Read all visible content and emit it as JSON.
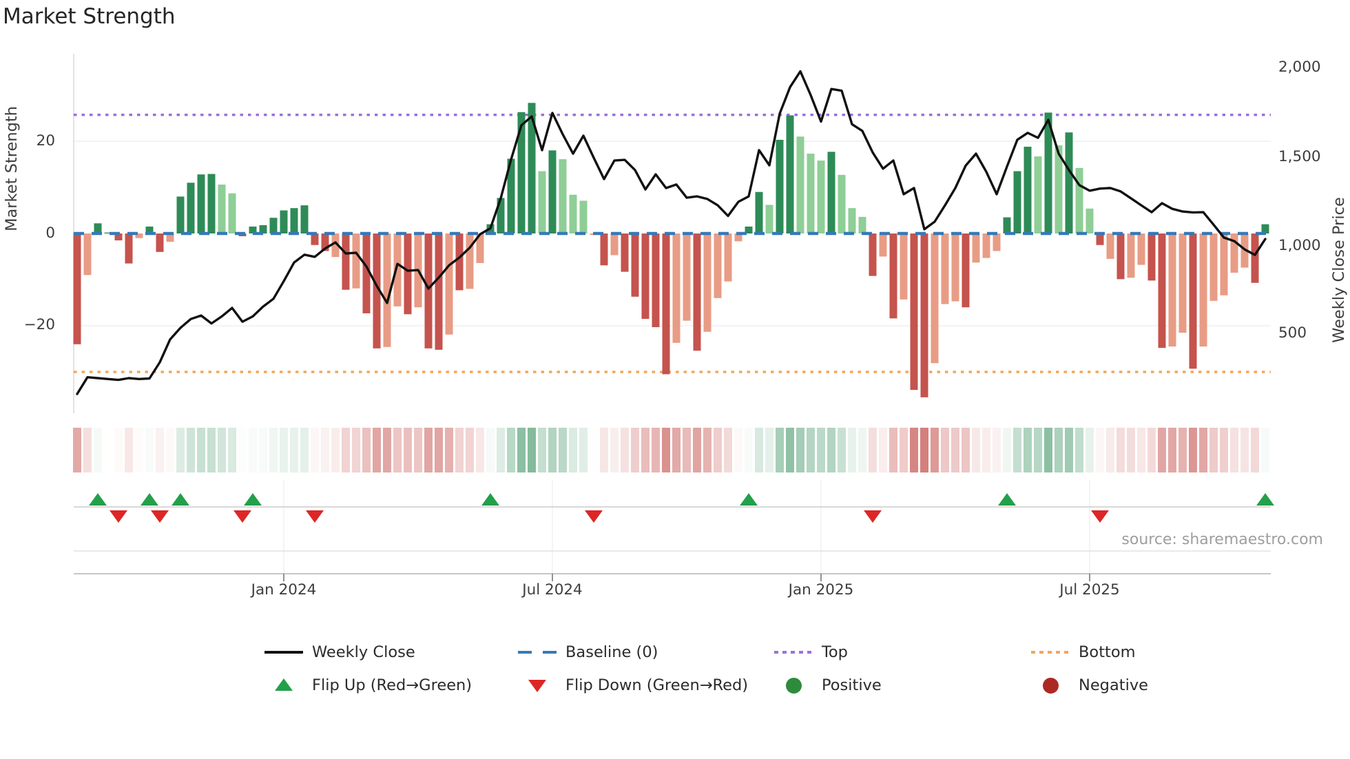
{
  "title": "Market Strength",
  "source": "source: sharemaestro.com",
  "axes": {
    "left_label": "Market Strength",
    "right_label": "Weekly Close Price",
    "left_ticks": [
      {
        "label": "20",
        "value": 20
      },
      {
        "label": "0",
        "value": 0
      },
      {
        "label": "−20",
        "value": -20
      }
    ],
    "right_ticks": [
      {
        "label": "2,000",
        "value": 2000
      },
      {
        "label": "1,500",
        "value": 1500
      },
      {
        "label": "1,000",
        "value": 1000
      },
      {
        "label": "500",
        "value": 500
      }
    ],
    "x_ticks": [
      {
        "label": "Jan 2024",
        "week": 20
      },
      {
        "label": "Jul 2024",
        "week": 46
      },
      {
        "label": "Jan 2025",
        "week": 72
      },
      {
        "label": "Jul 2025",
        "week": 98
      }
    ]
  },
  "legend": {
    "items": [
      {
        "label": "Weekly Close",
        "swatch": "line-black"
      },
      {
        "label": "Baseline (0)",
        "swatch": "dash-blue"
      },
      {
        "label": "Top",
        "swatch": "dot-purple"
      },
      {
        "label": "Bottom",
        "swatch": "dot-orange"
      },
      {
        "label": "Flip Up (Red→Green)",
        "swatch": "triangle-up-green"
      },
      {
        "label": "Flip Down (Green→Red)",
        "swatch": "triangle-down-red"
      },
      {
        "label": "Positive",
        "swatch": "circle-green"
      },
      {
        "label": "Negative",
        "swatch": "circle-red"
      }
    ]
  },
  "colors": {
    "bar_dark_green": "#2e8b57",
    "bar_light_green": "#8fce96",
    "bar_dark_red": "#c5534e",
    "bar_light_red": "#e89c85",
    "baseline_blue": "#3579b8",
    "top_purple": "#9e6fd8",
    "bottom_orange": "#f2a65c",
    "price_line": "#111111",
    "flip_up_green": "#22a04a",
    "flip_down_red": "#dd2626",
    "positive_green": "#2e8b3c",
    "negative_red": "#ad2a24",
    "gridline": "#ececec",
    "spine": "#d9d9d9"
  },
  "chart_data": {
    "type": "bar+line",
    "title": "Market Strength",
    "x_unit": "weeks",
    "weeks": 116,
    "xlabel": "",
    "ylabel_left": "Market Strength",
    "ylabel_right": "Weekly Close Price",
    "ylim_left": [
      -39,
      39
    ],
    "ylim_right": [
      50,
      2100
    ],
    "baseline": 0,
    "top_line": 25.7,
    "bottom_line": -30,
    "grid": "horizontal at 20 and -20",
    "legend_position": "bottom, two rows, four columns",
    "series": [
      {
        "name": "Market Strength",
        "type": "bar",
        "axis": "left",
        "values": [
          -24,
          -9,
          2.2,
          0.2,
          -1.5,
          -6.5,
          -1,
          1.5,
          -4,
          -1.8,
          8,
          11,
          12.8,
          12.9,
          10.6,
          8.7,
          -0.6,
          1.5,
          1.8,
          3.4,
          5,
          5.5,
          6.1,
          -2.5,
          -3.8,
          -5.1,
          -12.2,
          -11.9,
          -17.3,
          -24.9,
          -24.6,
          -15.8,
          -17.5,
          -16,
          -24.9,
          -25.2,
          -21.9,
          -12.3,
          -12,
          -6.4,
          2,
          7.7,
          16.2,
          26.3,
          28.3,
          13.5,
          18,
          16.1,
          8.4,
          7.1,
          -0.3,
          -6.9,
          -4.7,
          -8.3,
          -13.7,
          -18.5,
          -20.3,
          -30.5,
          -23.7,
          -18.9,
          -25.4,
          -21.3,
          -14,
          -10.4,
          -1.7,
          1.5,
          9,
          6.2,
          20.3,
          25.6,
          21,
          17.3,
          15.8,
          17.7,
          12.7,
          5.5,
          3.6,
          -9.2,
          -5,
          -18.4,
          -14.3,
          -33.9,
          -35.5,
          -28.1,
          -15.3,
          -14.7,
          -16,
          -6.3,
          -5.3,
          -3.8,
          3.5,
          13.5,
          18.8,
          16.7,
          26.2,
          19.1,
          21.9,
          14.2,
          5.4,
          -2.5,
          -5.5,
          -9.9,
          -9.6,
          -6.8,
          -10.2,
          -24.8,
          -24.5,
          -21.5,
          -29.3,
          -24.5,
          -14.6,
          -13.4,
          -8.5,
          -7.4,
          -10.7,
          2
        ],
        "shades": [
          "dr",
          "lr",
          "dg",
          "dg",
          "dr",
          "dr",
          "lr",
          "dg",
          "dr",
          "lr",
          "dg",
          "dg",
          "dg",
          "dg",
          "lg",
          "lg",
          "dr",
          "dg",
          "dg",
          "dg",
          "dg",
          "dg",
          "dg",
          "dr",
          "dr",
          "lr",
          "dr",
          "lr",
          "dr",
          "dr",
          "lr",
          "lr",
          "dr",
          "lr",
          "dr",
          "dr",
          "lr",
          "dr",
          "lr",
          "lr",
          "dg",
          "dg",
          "dg",
          "dg",
          "dg",
          "lg",
          "dg",
          "lg",
          "lg",
          "lg",
          "lr",
          "dr",
          "lr",
          "dr",
          "dr",
          "dr",
          "dr",
          "dr",
          "lr",
          "lr",
          "dr",
          "lr",
          "lr",
          "lr",
          "lr",
          "dg",
          "dg",
          "lg",
          "dg",
          "dg",
          "lg",
          "lg",
          "lg",
          "dg",
          "lg",
          "lg",
          "lg",
          "dr",
          "lr",
          "dr",
          "lr",
          "dr",
          "dr",
          "lr",
          "lr",
          "lr",
          "dr",
          "lr",
          "lr",
          "lr",
          "dg",
          "dg",
          "dg",
          "lg",
          "dg",
          "lg",
          "dg",
          "lg",
          "lg",
          "dr",
          "lr",
          "dr",
          "lr",
          "lr",
          "dr",
          "dr",
          "lr",
          "lr",
          "dr",
          "lr",
          "lr",
          "lr",
          "lr",
          "lr",
          "dr",
          "dg"
        ]
      },
      {
        "name": "Weekly Close",
        "type": "line",
        "axis": "right",
        "values": [
          160,
          255,
          250,
          245,
          240,
          250,
          245,
          248,
          340,
          470,
          535,
          585,
          605,
          560,
          600,
          648,
          570,
          600,
          656,
          700,
          800,
          906,
          950,
          938,
          985,
          1020,
          957,
          961,
          883,
          773,
          676,
          898,
          859,
          863,
          758,
          820,
          890,
          934,
          990,
          1066,
          1100,
          1270,
          1490,
          1684,
          1734,
          1543,
          1754,
          1633,
          1523,
          1625,
          1500,
          1379,
          1484,
          1488,
          1430,
          1320,
          1406,
          1328,
          1348,
          1273,
          1281,
          1266,
          1230,
          1170,
          1250,
          1281,
          1543,
          1457,
          1750,
          1900,
          1990,
          1855,
          1705,
          1890,
          1880,
          1690,
          1652,
          1530,
          1438,
          1484,
          1293,
          1328,
          1094,
          1137,
          1230,
          1328,
          1455,
          1523,
          1420,
          1293,
          1450,
          1602,
          1641,
          1613,
          1715,
          1523,
          1430,
          1345,
          1313,
          1325,
          1328,
          1309,
          1270,
          1230,
          1191,
          1242,
          1210,
          1195,
          1190,
          1191,
          1120,
          1047,
          1027,
          980,
          949,
          1039
        ]
      }
    ],
    "flip_up_weeks": [
      2,
      7,
      10,
      17,
      40,
      65,
      90,
      115
    ],
    "flip_down_weeks": [
      4,
      8,
      16,
      23,
      50,
      77,
      99
    ],
    "heatmap": {
      "description": "color strip mirroring bar values, white near 0, saturating green/red with magnitude",
      "rows": 1,
      "cells": 116
    }
  }
}
